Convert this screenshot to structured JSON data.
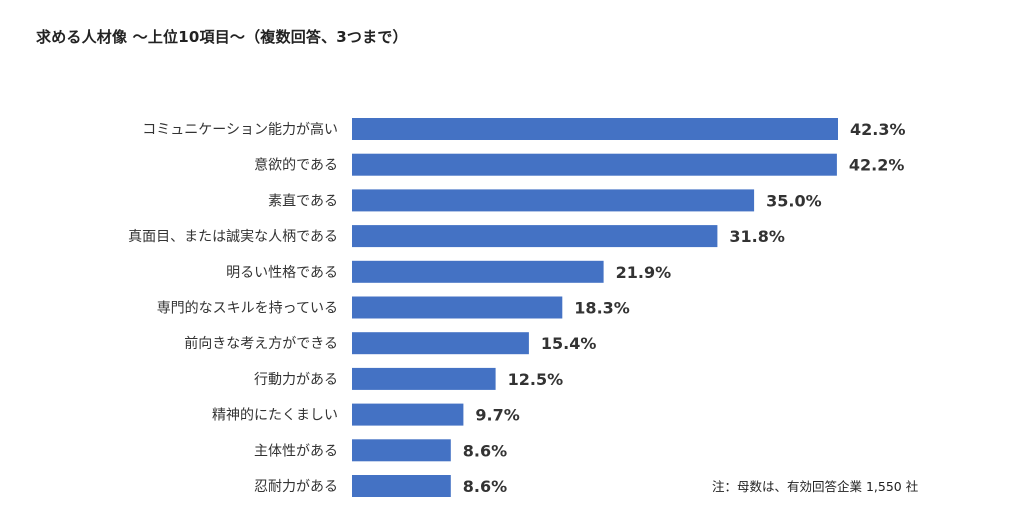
{
  "title": "求める人材像 〜上位10項目〜（複数回答、3つまで）",
  "note": "注：母数は、有効回答企業 1,550 社",
  "chart_data": {
    "type": "bar",
    "orientation": "horizontal",
    "title": "求める人材像 〜上位10項目〜（複数回答、3つまで）",
    "categories": [
      "コミュニケーション能力が高い",
      "意欲的である",
      "素直である",
      "真面目、または誠実な人柄である",
      "明るい性格である",
      "専門的なスキルを持っている",
      "前向きな考え方ができる",
      "行動力がある",
      "精神的にたくましい",
      "主体性がある",
      "忍耐力がある"
    ],
    "values": [
      42.3,
      42.2,
      35.0,
      31.8,
      21.9,
      18.3,
      15.4,
      12.5,
      9.7,
      8.6,
      8.6
    ],
    "value_labels": [
      "42.3%",
      "42.2%",
      "35.0%",
      "31.8%",
      "21.9%",
      "18.3%",
      "15.4%",
      "12.5%",
      "9.7%",
      "8.6%",
      "8.6%"
    ],
    "xlim": [
      0,
      42.3
    ],
    "bar_color": "#4472c4",
    "grid": false,
    "legend": "none"
  }
}
